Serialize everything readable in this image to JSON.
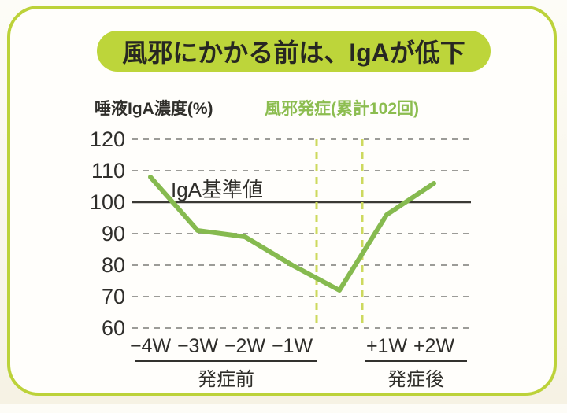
{
  "header": {
    "title": "風邪にかかる前は、IgAが低下"
  },
  "colors": {
    "page_bg": "#f6f2e4",
    "card_bg": "#fffefb",
    "card_border": "#bcd23a",
    "banner_bg": "#bdd53a",
    "banner_text": "#272722",
    "line": "#86ba4f",
    "onset_dash": "#cdd95e",
    "legend_text": "#8cbd50",
    "grid": "#9c9c98",
    "reference_line": "#3a3934",
    "text": "#2f2e2a"
  },
  "chart_data": {
    "type": "line",
    "title": "風邪にかかる前は、IgAが低下",
    "ylabel": "唾液IgA濃度(%)",
    "xlabel": "",
    "legend": "風邪発症(累計102回)",
    "reference_label": "IgA基準値",
    "reference_value": 100,
    "categories": [
      "−4W",
      "−3W",
      "−2W",
      "−1W",
      "",
      "+1W",
      "+2W"
    ],
    "values": [
      108,
      91,
      89,
      80,
      72,
      96,
      106
    ],
    "onset_band_index": 4,
    "x_groups": [
      {
        "label": "発症前",
        "categories": [
          "−4W",
          "−3W",
          "−2W",
          "−1W"
        ]
      },
      {
        "label": "発症後",
        "categories": [
          "+1W",
          "+2W"
        ]
      }
    ],
    "yticks": [
      120,
      110,
      100,
      90,
      80,
      70,
      60
    ],
    "ylim": [
      60,
      120
    ],
    "grid": "dashed-horizontal",
    "legend_position": "top"
  }
}
